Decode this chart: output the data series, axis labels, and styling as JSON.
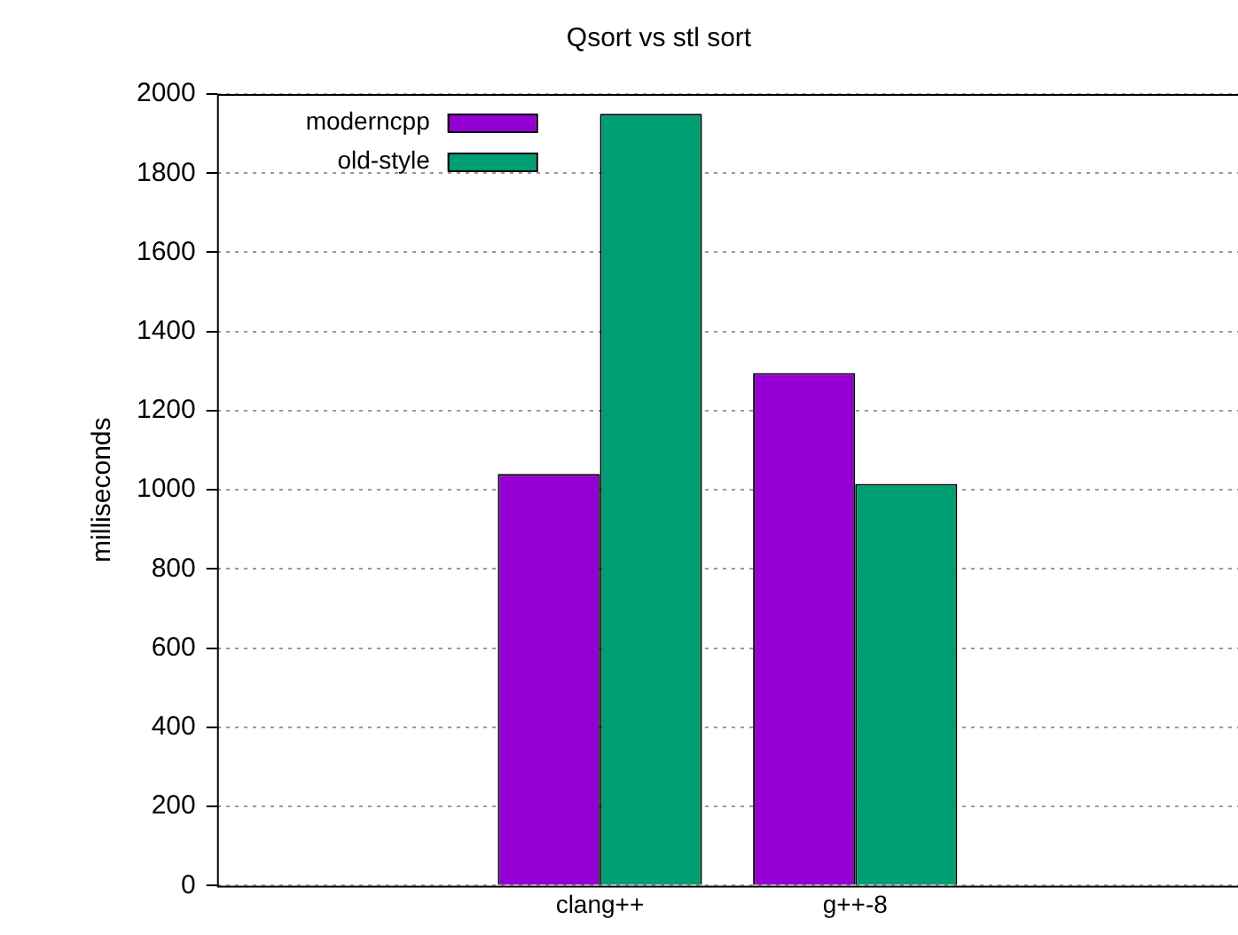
{
  "chart_data": {
    "type": "bar",
    "title": "Qsort vs stl sort",
    "ylabel": "milliseconds",
    "categories": [
      null,
      "clang++",
      "g++-8",
      null
    ],
    "series": [
      {
        "name": "moderncpp",
        "color": "#9400d3",
        "values": [
          null,
          1040,
          1295,
          null
        ]
      },
      {
        "name": "old-style",
        "color": "#009e73",
        "values": [
          null,
          1950,
          1015,
          null
        ]
      }
    ],
    "ylim": [
      0,
      2000
    ],
    "yticks": [
      0,
      200,
      400,
      600,
      800,
      1000,
      1200,
      1400,
      1600,
      1800,
      2000
    ],
    "grid": "y",
    "legend": "top left"
  }
}
